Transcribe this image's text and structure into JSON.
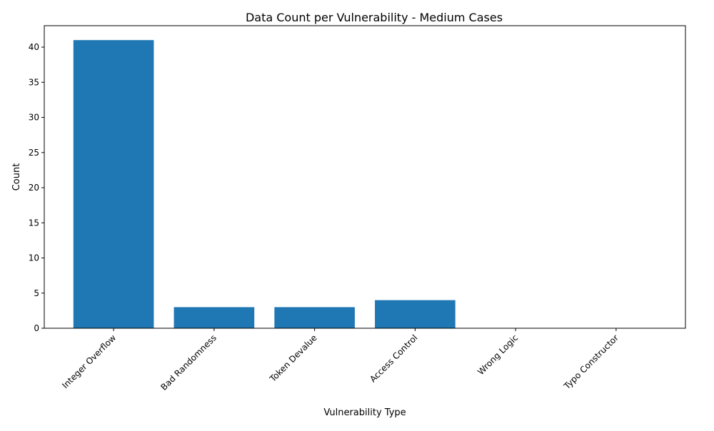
{
  "chart_data": {
    "type": "bar",
    "title": "Data Count per Vulnerability - Medium Cases",
    "xlabel": "Vulnerability Type",
    "ylabel": "Count",
    "categories": [
      "Integer Overflow",
      "Bad Randomness",
      "Token Devalue",
      "Access Control",
      "Wrong Logic",
      "Typo Constructor"
    ],
    "values": [
      41,
      3,
      3,
      4,
      0,
      0
    ],
    "yticks": [
      0,
      5,
      10,
      15,
      20,
      25,
      30,
      35,
      40
    ],
    "ylim": [
      0,
      43.05
    ],
    "bar_color": "#1f77b4",
    "grid": false,
    "legend": "none"
  }
}
